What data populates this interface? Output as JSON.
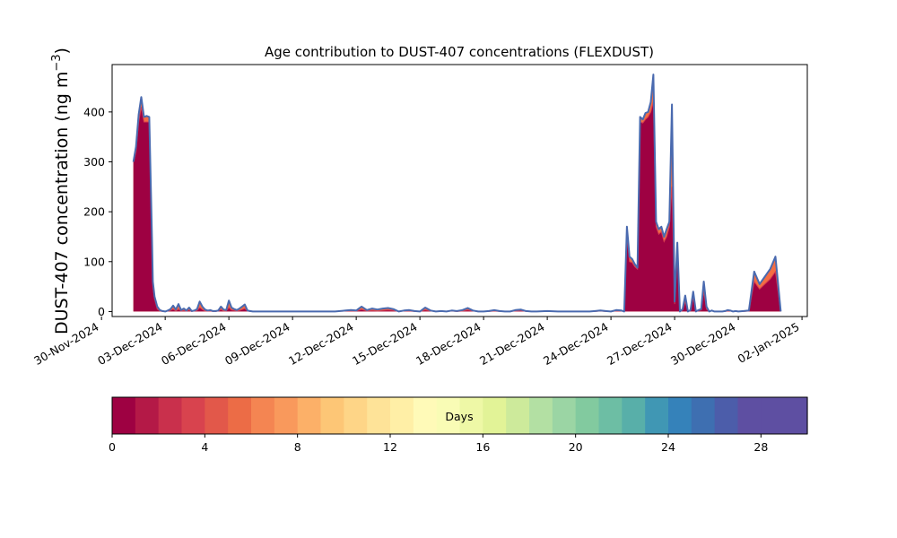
{
  "chart_data": {
    "type": "area",
    "title": "Age contribution to DUST-407 concentrations (FLEXDUST)",
    "ylabel": "DUST-407 concentration (ng m",
    "ylabel_sup": "−3",
    "ylabel_close": ")",
    "xlabel": "",
    "ylim": [
      -10,
      495
    ],
    "xlim": [
      "2024-11-30T12:00",
      "2025-01-02T06:00"
    ],
    "grid": false,
    "x_ticks": [
      "30-Nov-2024",
      "03-Dec-2024",
      "06-Dec-2024",
      "09-Dec-2024",
      "12-Dec-2024",
      "15-Dec-2024",
      "18-Dec-2024",
      "21-Dec-2024",
      "24-Dec-2024",
      "27-Dec-2024",
      "30-Dec-2024",
      "02-Jan-2025"
    ],
    "y_ticks": [
      0,
      100,
      200,
      300,
      400
    ],
    "colors": {
      "total_line": "#4a6aaf",
      "young_fill": "#9e0142",
      "young_line": "#d53e4f"
    },
    "series": [
      {
        "x": [
          "2024-12-01T12:00",
          "2024-12-01T15:00",
          "2024-12-01T18:00",
          "2024-12-01T21:00",
          "2024-12-02T00:00",
          "2024-12-02T03:00",
          "2024-12-02T06:00",
          "2024-12-02T09:00",
          "2024-12-02T10:00",
          "2024-12-02T12:00",
          "2024-12-02T15:00",
          "2024-12-02T18:00",
          "2024-12-02T21:00",
          "2024-12-03T00:00",
          "2024-12-03T03:00",
          "2024-12-03T06:00",
          "2024-12-03T09:00",
          "2024-12-03T12:00",
          "2024-12-03T15:00",
          "2024-12-03T18:00",
          "2024-12-03T21:00",
          "2024-12-04T00:00",
          "2024-12-04T03:00",
          "2024-12-04T06:00",
          "2024-12-04T09:00",
          "2024-12-04T12:00",
          "2024-12-04T15:00",
          "2024-12-04T18:00",
          "2024-12-04T21:00",
          "2024-12-05T00:00",
          "2024-12-05T03:00",
          "2024-12-05T06:00",
          "2024-12-05T09:00",
          "2024-12-05T12:00",
          "2024-12-05T15:00",
          "2024-12-05T18:00",
          "2024-12-05T21:00",
          "2024-12-06T00:00",
          "2024-12-06T03:00",
          "2024-12-06T06:00",
          "2024-12-06T09:00",
          "2024-12-06T12:00",
          "2024-12-06T15:00",
          "2024-12-06T18:00",
          "2024-12-06T21:00",
          "2024-12-07T00:00",
          "2024-12-07T03:00",
          "2024-12-07T06:00",
          "2024-12-07T09:00",
          "2024-12-07T12:00",
          "2024-12-07T18:00",
          "2024-12-08T00:00",
          "2024-12-08T12:00",
          "2024-12-09T00:00",
          "2024-12-09T12:00",
          "2024-12-10T00:00",
          "2024-12-10T12:00",
          "2024-12-11T00:00",
          "2024-12-11T12:00",
          "2024-12-11T18:00",
          "2024-12-12T00:00",
          "2024-12-12T06:00",
          "2024-12-12T12:00",
          "2024-12-12T18:00",
          "2024-12-13T00:00",
          "2024-12-13T06:00",
          "2024-12-13T12:00",
          "2024-12-13T18:00",
          "2024-12-14T00:00",
          "2024-12-14T06:00",
          "2024-12-14T12:00",
          "2024-12-14T18:00",
          "2024-12-15T00:00",
          "2024-12-15T06:00",
          "2024-12-15T12:00",
          "2024-12-15T18:00",
          "2024-12-16T00:00",
          "2024-12-16T06:00",
          "2024-12-16T12:00",
          "2024-12-16T18:00",
          "2024-12-17T00:00",
          "2024-12-17T06:00",
          "2024-12-17T12:00",
          "2024-12-17T18:00",
          "2024-12-18T00:00",
          "2024-12-18T06:00",
          "2024-12-18T12:00",
          "2024-12-18T18:00",
          "2024-12-19T00:00",
          "2024-12-19T06:00",
          "2024-12-19T12:00",
          "2024-12-19T18:00",
          "2024-12-20T00:00",
          "2024-12-20T06:00",
          "2024-12-20T12:00",
          "2024-12-21T00:00",
          "2024-12-21T12:00",
          "2024-12-22T00:00",
          "2024-12-22T12:00",
          "2024-12-23T00:00",
          "2024-12-23T06:00",
          "2024-12-23T12:00",
          "2024-12-23T18:00",
          "2024-12-24T00:00",
          "2024-12-24T06:00",
          "2024-12-24T12:00",
          "2024-12-24T15:00",
          "2024-12-24T18:00",
          "2024-12-24T21:00",
          "2024-12-25T00:00",
          "2024-12-25T03:00",
          "2024-12-25T06:00",
          "2024-12-25T09:00",
          "2024-12-25T12:00",
          "2024-12-25T15:00",
          "2024-12-25T18:00",
          "2024-12-25T21:00",
          "2024-12-26T00:00",
          "2024-12-26T03:00",
          "2024-12-26T06:00",
          "2024-12-26T09:00",
          "2024-12-26T12:00",
          "2024-12-26T15:00",
          "2024-12-26T18:00",
          "2024-12-26T21:00",
          "2024-12-27T00:00",
          "2024-12-27T03:00",
          "2024-12-27T06:00",
          "2024-12-27T09:00",
          "2024-12-27T12:00",
          "2024-12-27T15:00",
          "2024-12-27T18:00",
          "2024-12-27T21:00",
          "2024-12-28T00:00",
          "2024-12-28T03:00",
          "2024-12-28T06:00",
          "2024-12-28T09:00",
          "2024-12-28T12:00",
          "2024-12-28T15:00",
          "2024-12-28T18:00",
          "2024-12-28T21:00",
          "2024-12-29T00:00",
          "2024-12-29T03:00",
          "2024-12-29T06:00",
          "2024-12-29T09:00",
          "2024-12-29T12:00",
          "2024-12-29T15:00",
          "2024-12-29T18:00",
          "2024-12-29T21:00",
          "2024-12-30T00:00",
          "2024-12-30T06:00",
          "2024-12-30T12:00",
          "2024-12-30T18:00",
          "2024-12-31T00:00",
          "2024-12-31T06:00",
          "2024-12-31T12:00",
          "2024-12-31T18:00",
          "2025-01-01T00:00",
          "2025-01-01T03:00",
          "2025-01-01T06:00",
          "2025-01-01T09:00",
          "2025-01-01T12:00",
          "2025-01-01T15:00",
          "2025-01-01T18:00",
          "2025-01-01T21:00"
        ],
        "total": [
          300,
          330,
          395,
          430,
          390,
          392,
          390,
          150,
          60,
          30,
          10,
          3,
          1,
          0,
          2,
          5,
          12,
          4,
          15,
          3,
          6,
          2,
          8,
          1,
          2,
          5,
          20,
          10,
          4,
          2,
          3,
          1,
          1,
          2,
          10,
          4,
          3,
          22,
          8,
          5,
          3,
          6,
          10,
          14,
          2,
          1,
          0,
          0,
          0,
          0,
          0,
          0,
          0,
          0,
          0,
          0,
          0,
          0,
          2,
          3,
          2,
          10,
          3,
          6,
          4,
          6,
          7,
          5,
          0,
          2,
          3,
          1,
          0,
          8,
          2,
          0,
          1,
          0,
          2,
          1,
          3,
          7,
          2,
          0,
          0,
          1,
          3,
          1,
          0,
          0,
          3,
          4,
          1,
          0,
          0,
          1,
          0,
          0,
          0,
          0,
          1,
          2,
          1,
          0,
          3,
          2,
          0,
          170,
          110,
          105,
          95,
          88,
          390,
          385,
          398,
          400,
          420,
          475,
          180,
          165,
          170,
          150,
          165,
          180,
          415,
          20,
          138,
          0,
          5,
          32,
          0,
          3,
          40,
          0,
          3,
          5,
          60,
          10,
          0,
          2,
          0,
          0,
          0,
          0,
          1,
          3,
          2,
          0,
          1,
          0,
          1,
          2,
          80,
          55,
          70,
          85,
          110,
          0
        ],
        "young": [
          300,
          320,
          380,
          410,
          380,
          380,
          380,
          150,
          50,
          25,
          5,
          1,
          0,
          0,
          1,
          2,
          5,
          1,
          5,
          1,
          2,
          1,
          3,
          0,
          1,
          2,
          8,
          4,
          1,
          1,
          1,
          0,
          0,
          1,
          4,
          1,
          1,
          8,
          3,
          2,
          1,
          2,
          4,
          6,
          1,
          0,
          0,
          0,
          0,
          0,
          0,
          0,
          0,
          0,
          0,
          0,
          0,
          0,
          1,
          1,
          1,
          4,
          1,
          2,
          1,
          2,
          3,
          2,
          0,
          1,
          1,
          0,
          0,
          3,
          1,
          0,
          0,
          0,
          1,
          0,
          1,
          3,
          1,
          0,
          0,
          0,
          1,
          0,
          0,
          0,
          1,
          2,
          0,
          0,
          0,
          0,
          0,
          0,
          0,
          0,
          0,
          1,
          0,
          0,
          1,
          1,
          0,
          150,
          100,
          98,
          90,
          85,
          380,
          378,
          385,
          390,
          400,
          420,
          170,
          155,
          160,
          140,
          150,
          170,
          250,
          15,
          120,
          0,
          3,
          20,
          0,
          2,
          28,
          0,
          2,
          3,
          40,
          5,
          0,
          1,
          0,
          0,
          0,
          0,
          0,
          1,
          1,
          0,
          0,
          0,
          0,
          1,
          60,
          45,
          55,
          65,
          80,
          0
        ]
      }
    ],
    "colorbar": {
      "label": "Days",
      "min": 0,
      "max": 30,
      "ticks": [
        0,
        4,
        8,
        12,
        16,
        20,
        24,
        28
      ],
      "colors": [
        "#9e0142",
        "#b41947",
        "#c9304c",
        "#d8434e",
        "#e2584a",
        "#ec6c46",
        "#f48552",
        "#f9995c",
        "#fcb068",
        "#fdc676",
        "#fed587",
        "#fee398",
        "#ffefa6",
        "#fffab8",
        "#f9fcb5",
        "#eef8a6",
        "#e2f397",
        "#cdea9b",
        "#b3e0a3",
        "#9bd5a4",
        "#82ca9f",
        "#6dbea4",
        "#58afa9",
        "#4097b4",
        "#3582ba",
        "#3e6fb1",
        "#4c5daa",
        "#5e4fa2",
        "#5e4fa2",
        "#5e4fa2"
      ]
    }
  }
}
